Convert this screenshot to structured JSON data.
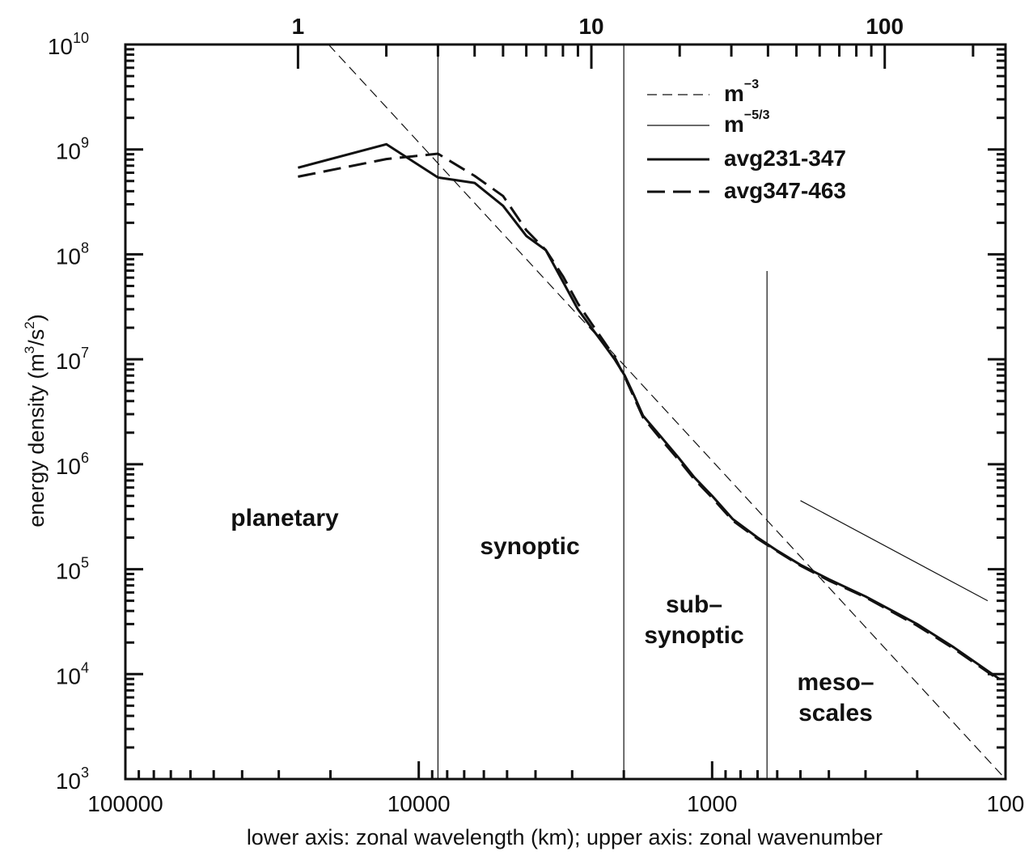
{
  "chart_data": {
    "type": "line",
    "xlabel": "lower axis: zonal wavelength (km); upper axis: zonal wavenumber",
    "ylabel": "energy density (m³/s²)",
    "ylabel_parts": {
      "pre": "energy density (m",
      "sup1": "3",
      "mid": "/s",
      "sup2": "2",
      "post": ")"
    },
    "x_scale": "log-reversed",
    "xlim_km": [
      100000,
      100
    ],
    "ylim": [
      1000,
      10000000000
    ],
    "y_scale": "log",
    "x_ticks": [
      {
        "value": 100000,
        "label": "100000"
      },
      {
        "value": 10000,
        "label": "10000"
      },
      {
        "value": 1000,
        "label": "1000"
      },
      {
        "value": 100,
        "label": "100"
      }
    ],
    "y_ticks": [
      {
        "exp": 3,
        "base": "10",
        "sup": "3"
      },
      {
        "exp": 4,
        "base": "10",
        "sup": "4"
      },
      {
        "exp": 5,
        "base": "10",
        "sup": "5"
      },
      {
        "exp": 6,
        "base": "10",
        "sup": "6"
      },
      {
        "exp": 7,
        "base": "10",
        "sup": "7"
      },
      {
        "exp": 8,
        "base": "10",
        "sup": "8"
      },
      {
        "exp": 9,
        "base": "10",
        "sup": "9"
      },
      {
        "exp": 10,
        "base": "10",
        "sup": "10"
      }
    ],
    "top_ticks": [
      {
        "value": 1,
        "label": "1"
      },
      {
        "value": 10,
        "label": "10"
      },
      {
        "value": 100,
        "label": "100"
      }
    ],
    "top_axis_circumference_km": 25800,
    "region_boundaries_km": [
      8600,
      2000,
      650
    ],
    "regions": [
      {
        "label1": "planetary",
        "label2": ""
      },
      {
        "label1": "synoptic",
        "label2": ""
      },
      {
        "label1": "sub–",
        "label2": "synoptic"
      },
      {
        "label1": "meso–",
        "label2": "scales"
      }
    ],
    "series": [
      {
        "name": "avg231-347",
        "style": "solid-thick",
        "x_km": [
          25800,
          12900,
          8600,
          6450,
          5160,
          4300,
          3690,
          3225,
          2867,
          2580,
          2345,
          2150,
          1985,
          1843,
          1720,
          1500,
          1300,
          1150,
          1000,
          850,
          700,
          600,
          500,
          400,
          300,
          200,
          150,
          105
        ],
        "y": [
          670000000,
          1120000000,
          540000000,
          480000000,
          290000000,
          150000000,
          110000000,
          55000000,
          30000000,
          20000000,
          14000000,
          10000000,
          7000000,
          4500000,
          2900000,
          1850000,
          1150000,
          750000,
          500000,
          300000,
          200000,
          150000,
          110000,
          80000,
          55000,
          30000,
          18000,
          9000
        ]
      },
      {
        "name": "avg347-463",
        "style": "dashed-thick",
        "x_km": [
          25800,
          12900,
          8600,
          6450,
          5160,
          4300,
          3690,
          3225,
          2867,
          2580,
          2345,
          2150,
          1985,
          1843,
          1720,
          1500,
          1300,
          1150,
          1000,
          850,
          700,
          600,
          500,
          400,
          300,
          200,
          150,
          105
        ],
        "y": [
          550000000,
          810000000,
          910000000,
          560000000,
          360000000,
          170000000,
          110000000,
          62000000,
          34000000,
          22000000,
          15000000,
          10500000,
          6800000,
          4300000,
          2800000,
          1750000,
          1100000,
          720000,
          480000,
          290000,
          195000,
          148000,
          108000,
          78000,
          54000,
          29000,
          17500,
          8800
        ]
      },
      {
        "name": "m⁻³",
        "legend_base": "m",
        "legend_sup": "−3",
        "style": "dashed-thin",
        "x_km": [
          20300,
          100
        ],
        "y": [
          10000000000,
          1000
        ]
      },
      {
        "name": "m⁻⁵ᐟ³",
        "legend_base": "m",
        "legend_sup": "−5/3",
        "style": "solid-thin",
        "x_km": [
          500,
          115
        ],
        "y": [
          450000,
          50000
        ]
      }
    ],
    "legend_position": "top-right",
    "grid": false
  }
}
